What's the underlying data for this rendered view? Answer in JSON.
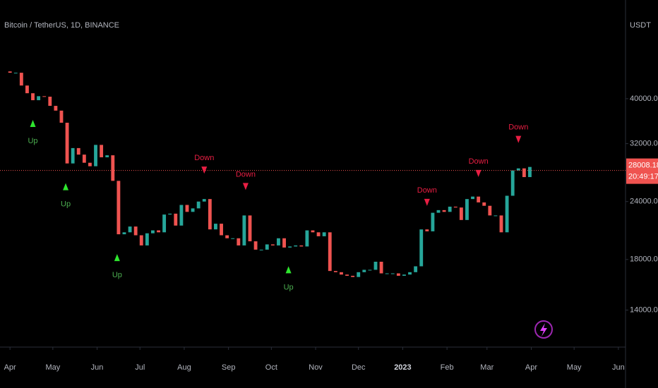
{
  "chart_data": {
    "type": "candlestick",
    "title": "Bitcoin / TetherUS, 1D, BINANCE",
    "y_axis_label": "USDT",
    "log_scale": true,
    "up_color": "#26a69a",
    "down_color": "#ef5350",
    "x": [
      0,
      4,
      8,
      12,
      16,
      20,
      24,
      28,
      32,
      36,
      40,
      44,
      48,
      52,
      56,
      60,
      64,
      68,
      72,
      76,
      80,
      84,
      88,
      92,
      96,
      100,
      104,
      108,
      112,
      116,
      120,
      124,
      128,
      132,
      136,
      140,
      144,
      148,
      152,
      156,
      160,
      164,
      168,
      172,
      176,
      180,
      184,
      188,
      192,
      196,
      200,
      204,
      208,
      212,
      216,
      220,
      224,
      228,
      232,
      236,
      240,
      244,
      248,
      252,
      256,
      260,
      264,
      268,
      272,
      276,
      280,
      284,
      288,
      292,
      296,
      300,
      304,
      308,
      312,
      316,
      320,
      324,
      328,
      332,
      336,
      340,
      344,
      348,
      352,
      356,
      360,
      364
    ],
    "open": [
      45800,
      45500,
      45500,
      42700,
      41100,
      39700,
      40500,
      40400,
      38600,
      37700,
      35500,
      29000,
      31300,
      30300,
      29100,
      28600,
      31800,
      29900,
      30200,
      26600,
      20400,
      20600,
      21200,
      20300,
      19300,
      20500,
      20800,
      20600,
      22500,
      22600,
      21300,
      23600,
      22800,
      23200,
      24000,
      24300,
      20900,
      21500,
      20300,
      20000,
      20000,
      19300,
      22400,
      19700,
      18900,
      18900,
      19400,
      19300,
      20000,
      19100,
      19200,
      19300,
      19200,
      20800,
      20600,
      20200,
      20600,
      17000,
      16900,
      16700,
      16600,
      16500,
      16900,
      17100,
      17100,
      17800,
      16800,
      16800,
      16800,
      16600,
      16700,
      16900,
      17400,
      20900,
      20700,
      22700,
      23000,
      22800,
      23400,
      23300,
      21900,
      24300,
      24600,
      23900,
      23500,
      22400,
      22400,
      20600,
      24700,
      28000,
      28300,
      27100
    ],
    "close": [
      45500,
      45500,
      42700,
      41100,
      39700,
      40500,
      40400,
      38600,
      37700,
      35500,
      29000,
      31300,
      30300,
      29100,
      28600,
      31800,
      29900,
      30200,
      26600,
      20400,
      20600,
      21200,
      20300,
      19300,
      20500,
      20800,
      20600,
      22500,
      22600,
      21300,
      23600,
      22800,
      23200,
      24000,
      24300,
      20900,
      21500,
      20300,
      20000,
      20000,
      19300,
      22400,
      19700,
      18900,
      18900,
      19400,
      19300,
      20000,
      19100,
      19200,
      19300,
      19200,
      20800,
      20600,
      20200,
      20600,
      17000,
      16900,
      16700,
      16600,
      16500,
      16900,
      17100,
      17100,
      17800,
      16800,
      16800,
      16800,
      16600,
      16700,
      16900,
      17400,
      20900,
      20700,
      22700,
      23000,
      22800,
      23400,
      23300,
      21900,
      24300,
      24600,
      23900,
      23500,
      22400,
      22400,
      20600,
      24700,
      28000,
      28300,
      27100,
      28500
    ],
    "xlim": [
      -7,
      431
    ],
    "xticks": [
      {
        "value": 0,
        "label": "Apr"
      },
      {
        "value": 30,
        "label": "May"
      },
      {
        "value": 61,
        "label": "Jun"
      },
      {
        "value": 91,
        "label": "Jul"
      },
      {
        "value": 122,
        "label": "Aug"
      },
      {
        "value": 153,
        "label": "Sep"
      },
      {
        "value": 183,
        "label": "Oct"
      },
      {
        "value": 214,
        "label": "Nov"
      },
      {
        "value": 244,
        "label": "Dec"
      },
      {
        "value": 275,
        "label": "2023"
      },
      {
        "value": 306,
        "label": "Feb"
      },
      {
        "value": 334,
        "label": "Mar"
      },
      {
        "value": 365,
        "label": "Apr"
      },
      {
        "value": 395,
        "label": "May"
      },
      {
        "value": 426,
        "label": "Jun"
      }
    ],
    "ylim": [
      11650,
      65300
    ],
    "yticks": [
      {
        "value": 14000,
        "label": "14000.00"
      },
      {
        "value": 18000,
        "label": "18000.00"
      },
      {
        "value": 24000,
        "label": "24000.00"
      },
      {
        "value": 32000,
        "label": "32000.00"
      },
      {
        "value": 40000,
        "label": "40000.00"
      }
    ],
    "last_price": {
      "value": 28008.18,
      "label": "28008.18"
    },
    "countdown": "20:49:17",
    "annotations": [
      {
        "text": "Up",
        "x": 16
      },
      {
        "text": "Up",
        "x": 39
      },
      {
        "text": "Up",
        "x": 75
      },
      {
        "text": "Up",
        "x": 195
      },
      {
        "text": "Down",
        "x": 136
      },
      {
        "text": "Down",
        "x": 165
      },
      {
        "text": "Down",
        "x": 292
      },
      {
        "text": "Down",
        "x": 328
      },
      {
        "text": "Down",
        "x": 356
      }
    ]
  }
}
